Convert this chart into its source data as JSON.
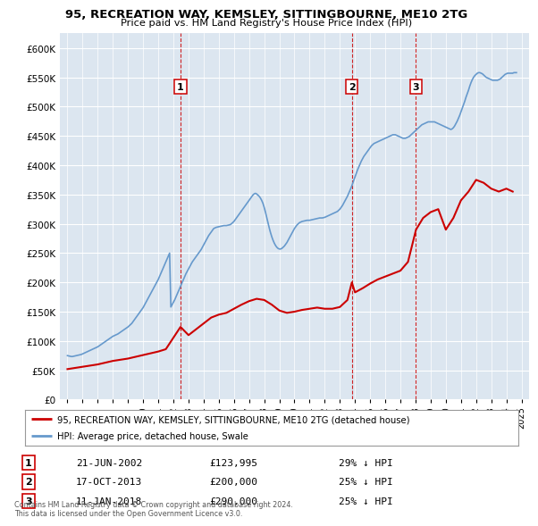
{
  "title": "95, RECREATION WAY, KEMSLEY, SITTINGBOURNE, ME10 2TG",
  "subtitle": "Price paid vs. HM Land Registry's House Price Index (HPI)",
  "legend_property": "95, RECREATION WAY, KEMSLEY, SITTINGBOURNE, ME10 2TG (detached house)",
  "legend_hpi": "HPI: Average price, detached house, Swale",
  "footnote": "Contains HM Land Registry data © Crown copyright and database right 2024.\nThis data is licensed under the Open Government Licence v3.0.",
  "sales": [
    {
      "num": 1,
      "date": "21-JUN-2002",
      "price": 123995,
      "pct": "29% ↓ HPI",
      "year": 2002.47
    },
    {
      "num": 2,
      "date": "17-OCT-2013",
      "price": 200000,
      "pct": "25% ↓ HPI",
      "year": 2013.79
    },
    {
      "num": 3,
      "date": "11-JAN-2018",
      "price": 290000,
      "pct": "25% ↓ HPI",
      "year": 2018.03
    }
  ],
  "property_color": "#cc0000",
  "hpi_color": "#6699cc",
  "vline_color": "#cc0000",
  "plot_bg_color": "#dce6f0",
  "ylim": [
    0,
    625000
  ],
  "yticks": [
    0,
    50000,
    100000,
    150000,
    200000,
    250000,
    300000,
    350000,
    400000,
    450000,
    500000,
    550000,
    600000
  ],
  "xlim_start": 1994.5,
  "xlim_end": 2025.5,
  "xticks": [
    1995,
    1996,
    1997,
    1998,
    1999,
    2000,
    2001,
    2002,
    2003,
    2004,
    2005,
    2006,
    2007,
    2008,
    2009,
    2010,
    2011,
    2012,
    2013,
    2014,
    2015,
    2016,
    2017,
    2018,
    2019,
    2020,
    2021,
    2022,
    2023,
    2024,
    2025
  ],
  "hpi_years_start": 1995.0,
  "hpi_years_step": 0.08333,
  "hpi_values": [
    75000,
    74500,
    74000,
    73500,
    73500,
    74000,
    74500,
    75000,
    75500,
    76000,
    76500,
    77000,
    78000,
    79000,
    80000,
    81000,
    82000,
    83000,
    84000,
    85000,
    86000,
    87000,
    88000,
    89000,
    90000,
    91500,
    93000,
    94500,
    96000,
    97500,
    99000,
    100500,
    102000,
    103500,
    105000,
    106500,
    108000,
    109000,
    110000,
    111000,
    112000,
    113500,
    115000,
    116500,
    118000,
    119500,
    121000,
    122500,
    124000,
    126000,
    128000,
    130000,
    133000,
    136000,
    139000,
    142000,
    145000,
    148000,
    151000,
    154000,
    157000,
    161000,
    165000,
    169000,
    173000,
    177000,
    181000,
    185000,
    189000,
    193000,
    197000,
    201000,
    205000,
    210000,
    215000,
    220000,
    225000,
    230000,
    235000,
    240000,
    245000,
    250000,
    158000,
    162000,
    166000,
    170000,
    175000,
    180000,
    185000,
    190000,
    195000,
    200000,
    205000,
    210000,
    215000,
    219000,
    223000,
    227000,
    231000,
    235000,
    238000,
    241000,
    244000,
    247000,
    250000,
    253000,
    256000,
    260000,
    264000,
    268000,
    272000,
    276000,
    280000,
    283000,
    286000,
    289000,
    292000,
    293000,
    294000,
    294500,
    295000,
    295500,
    296000,
    296500,
    297000,
    297000,
    297000,
    297500,
    298000,
    298500,
    300000,
    302000,
    304000,
    307000,
    310000,
    313000,
    316000,
    319000,
    322000,
    325000,
    328000,
    331000,
    334000,
    337000,
    340000,
    343000,
    346000,
    349000,
    351000,
    352000,
    351000,
    349000,
    347000,
    344000,
    340000,
    335000,
    328000,
    320000,
    311000,
    302000,
    293000,
    285000,
    278000,
    272000,
    267000,
    263000,
    260000,
    258000,
    257000,
    257000,
    258000,
    260000,
    262000,
    265000,
    268000,
    272000,
    276000,
    280000,
    284000,
    288000,
    292000,
    295000,
    298000,
    300000,
    302000,
    303000,
    304000,
    304500,
    305000,
    305500,
    306000,
    306000,
    306000,
    306500,
    307000,
    307500,
    308000,
    308500,
    309000,
    309500,
    310000,
    310000,
    310000,
    310500,
    311000,
    312000,
    313000,
    314000,
    315000,
    316000,
    317000,
    318000,
    319000,
    320000,
    321000,
    323000,
    325000,
    328000,
    331000,
    335000,
    339000,
    343000,
    347000,
    352000,
    357000,
    362000,
    368000,
    374000,
    380000,
    386000,
    392000,
    397000,
    402000,
    407000,
    411000,
    415000,
    418000,
    421000,
    424000,
    427000,
    430000,
    433000,
    435000,
    437000,
    438000,
    439000,
    440000,
    441000,
    442000,
    443000,
    444000,
    445000,
    446000,
    447000,
    448000,
    449000,
    450000,
    451000,
    452000,
    452000,
    452000,
    451000,
    450000,
    449000,
    448000,
    447000,
    446000,
    446000,
    446000,
    447000,
    448000,
    449000,
    451000,
    453000,
    455000,
    457000,
    459000,
    461000,
    463000,
    465000,
    467000,
    469000,
    470000,
    471000,
    472000,
    473000,
    474000,
    474000,
    474000,
    474000,
    474000,
    474000,
    473000,
    472000,
    471000,
    470000,
    469000,
    468000,
    467000,
    466000,
    465000,
    464000,
    463000,
    462000,
    461000,
    462000,
    464000,
    467000,
    471000,
    475000,
    480000,
    485000,
    491000,
    497000,
    503000,
    509000,
    516000,
    522000,
    528000,
    535000,
    541000,
    546000,
    550000,
    553000,
    555000,
    557000,
    558000,
    558000,
    557000,
    556000,
    554000,
    552000,
    550000,
    549000,
    548000,
    547000,
    546000,
    545000,
    545000,
    545000,
    545000,
    545000,
    546000,
    547000,
    549000,
    551000,
    553000,
    555000,
    556000,
    557000,
    557000,
    557000,
    557000,
    557000,
    558000,
    558000,
    558000
  ],
  "property_years": [
    1995.0,
    1995.5,
    1996.0,
    1996.5,
    1997.0,
    1997.5,
    1998.0,
    1998.5,
    1999.0,
    1999.5,
    2000.0,
    2000.5,
    2001.0,
    2001.5,
    2002.47,
    2003.0,
    2003.5,
    2004.0,
    2004.5,
    2005.0,
    2005.5,
    2006.0,
    2006.5,
    2007.0,
    2007.5,
    2008.0,
    2008.5,
    2009.0,
    2009.5,
    2010.0,
    2010.5,
    2011.0,
    2011.5,
    2012.0,
    2012.5,
    2013.0,
    2013.5,
    2013.79,
    2014.0,
    2014.5,
    2015.0,
    2015.5,
    2016.0,
    2016.5,
    2017.0,
    2017.5,
    2018.03,
    2018.5,
    2019.0,
    2019.5,
    2020.0,
    2020.5,
    2021.0,
    2021.5,
    2022.0,
    2022.5,
    2023.0,
    2023.5,
    2024.0,
    2024.42
  ],
  "property_values": [
    52000,
    54000,
    56000,
    58000,
    60000,
    63000,
    66000,
    68000,
    70000,
    73000,
    76000,
    79000,
    82000,
    86000,
    123995,
    110000,
    120000,
    130000,
    140000,
    145000,
    148000,
    155000,
    162000,
    168000,
    172000,
    170000,
    162000,
    152000,
    148000,
    150000,
    153000,
    155000,
    157000,
    155000,
    155000,
    158000,
    170000,
    200000,
    183000,
    190000,
    198000,
    205000,
    210000,
    215000,
    220000,
    235000,
    290000,
    310000,
    320000,
    325000,
    290000,
    310000,
    340000,
    355000,
    375000,
    370000,
    360000,
    355000,
    360000,
    355000
  ]
}
